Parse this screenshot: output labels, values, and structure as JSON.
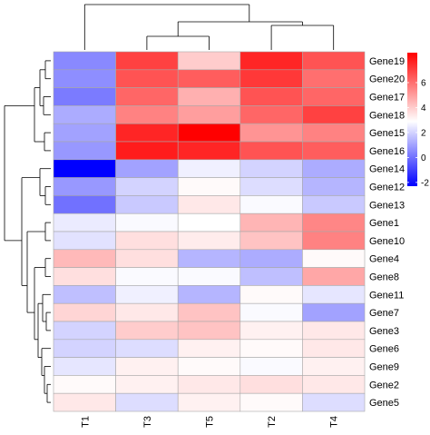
{
  "chart_data": {
    "type": "heatmap",
    "title": "",
    "xlabel": "",
    "ylabel": "",
    "columns": [
      "T1",
      "T3",
      "T5",
      "T2",
      "T4"
    ],
    "rows": [
      "Gene19",
      "Gene20",
      "Gene17",
      "Gene18",
      "Gene15",
      "Gene16",
      "Gene14",
      "Gene12",
      "Gene13",
      "Gene1",
      "Gene10",
      "Gene4",
      "Gene8",
      "Gene11",
      "Gene7",
      "Gene3",
      "Gene6",
      "Gene9",
      "Gene2",
      "Gene5"
    ],
    "values": [
      [
        0.5,
        7.0,
        4.0,
        7.6,
        6.6
      ],
      [
        0.6,
        6.6,
        6.4,
        7.2,
        6.0
      ],
      [
        0.2,
        6.2,
        4.6,
        6.6,
        6.2
      ],
      [
        1.2,
        5.6,
        5.0,
        6.2,
        7.0
      ],
      [
        1.0,
        7.6,
        8.4,
        5.2,
        5.6
      ],
      [
        0.8,
        7.8,
        7.6,
        6.6,
        6.4
      ],
      [
        -2.3,
        1.0,
        2.6,
        2.0,
        1.2
      ],
      [
        0.8,
        2.0,
        3.0,
        2.2,
        1.4
      ],
      [
        0.0,
        1.8,
        3.4,
        2.8,
        1.8
      ],
      [
        2.5,
        2.8,
        2.9,
        4.5,
        5.5
      ],
      [
        2.3,
        3.6,
        3.3,
        4.2,
        5.6
      ],
      [
        4.4,
        3.6,
        1.4,
        1.2,
        3.0
      ],
      [
        3.6,
        2.8,
        2.8,
        1.6,
        4.8
      ],
      [
        1.6,
        2.6,
        1.4,
        3.0,
        2.4
      ],
      [
        3.8,
        3.4,
        4.2,
        2.8,
        1.0
      ],
      [
        2.0,
        4.0,
        4.2,
        3.2,
        3.4
      ],
      [
        2.0,
        2.2,
        3.2,
        3.0,
        3.4
      ],
      [
        2.4,
        3.2,
        3.0,
        2.8,
        3.2
      ],
      [
        3.0,
        3.2,
        3.4,
        3.6,
        3.4
      ],
      [
        3.4,
        2.2,
        3.2,
        3.0,
        2.2
      ]
    ],
    "color_scale": {
      "min": -2.3,
      "mid": 2.9,
      "max": 8.4,
      "low_color": "#0000ff",
      "mid_color": "#ffffff",
      "high_color": "#ff0000",
      "ticks": [
        -2,
        0,
        2,
        4,
        6
      ]
    },
    "row_dendrogram": true,
    "column_dendrogram": true,
    "legend": "right"
  }
}
